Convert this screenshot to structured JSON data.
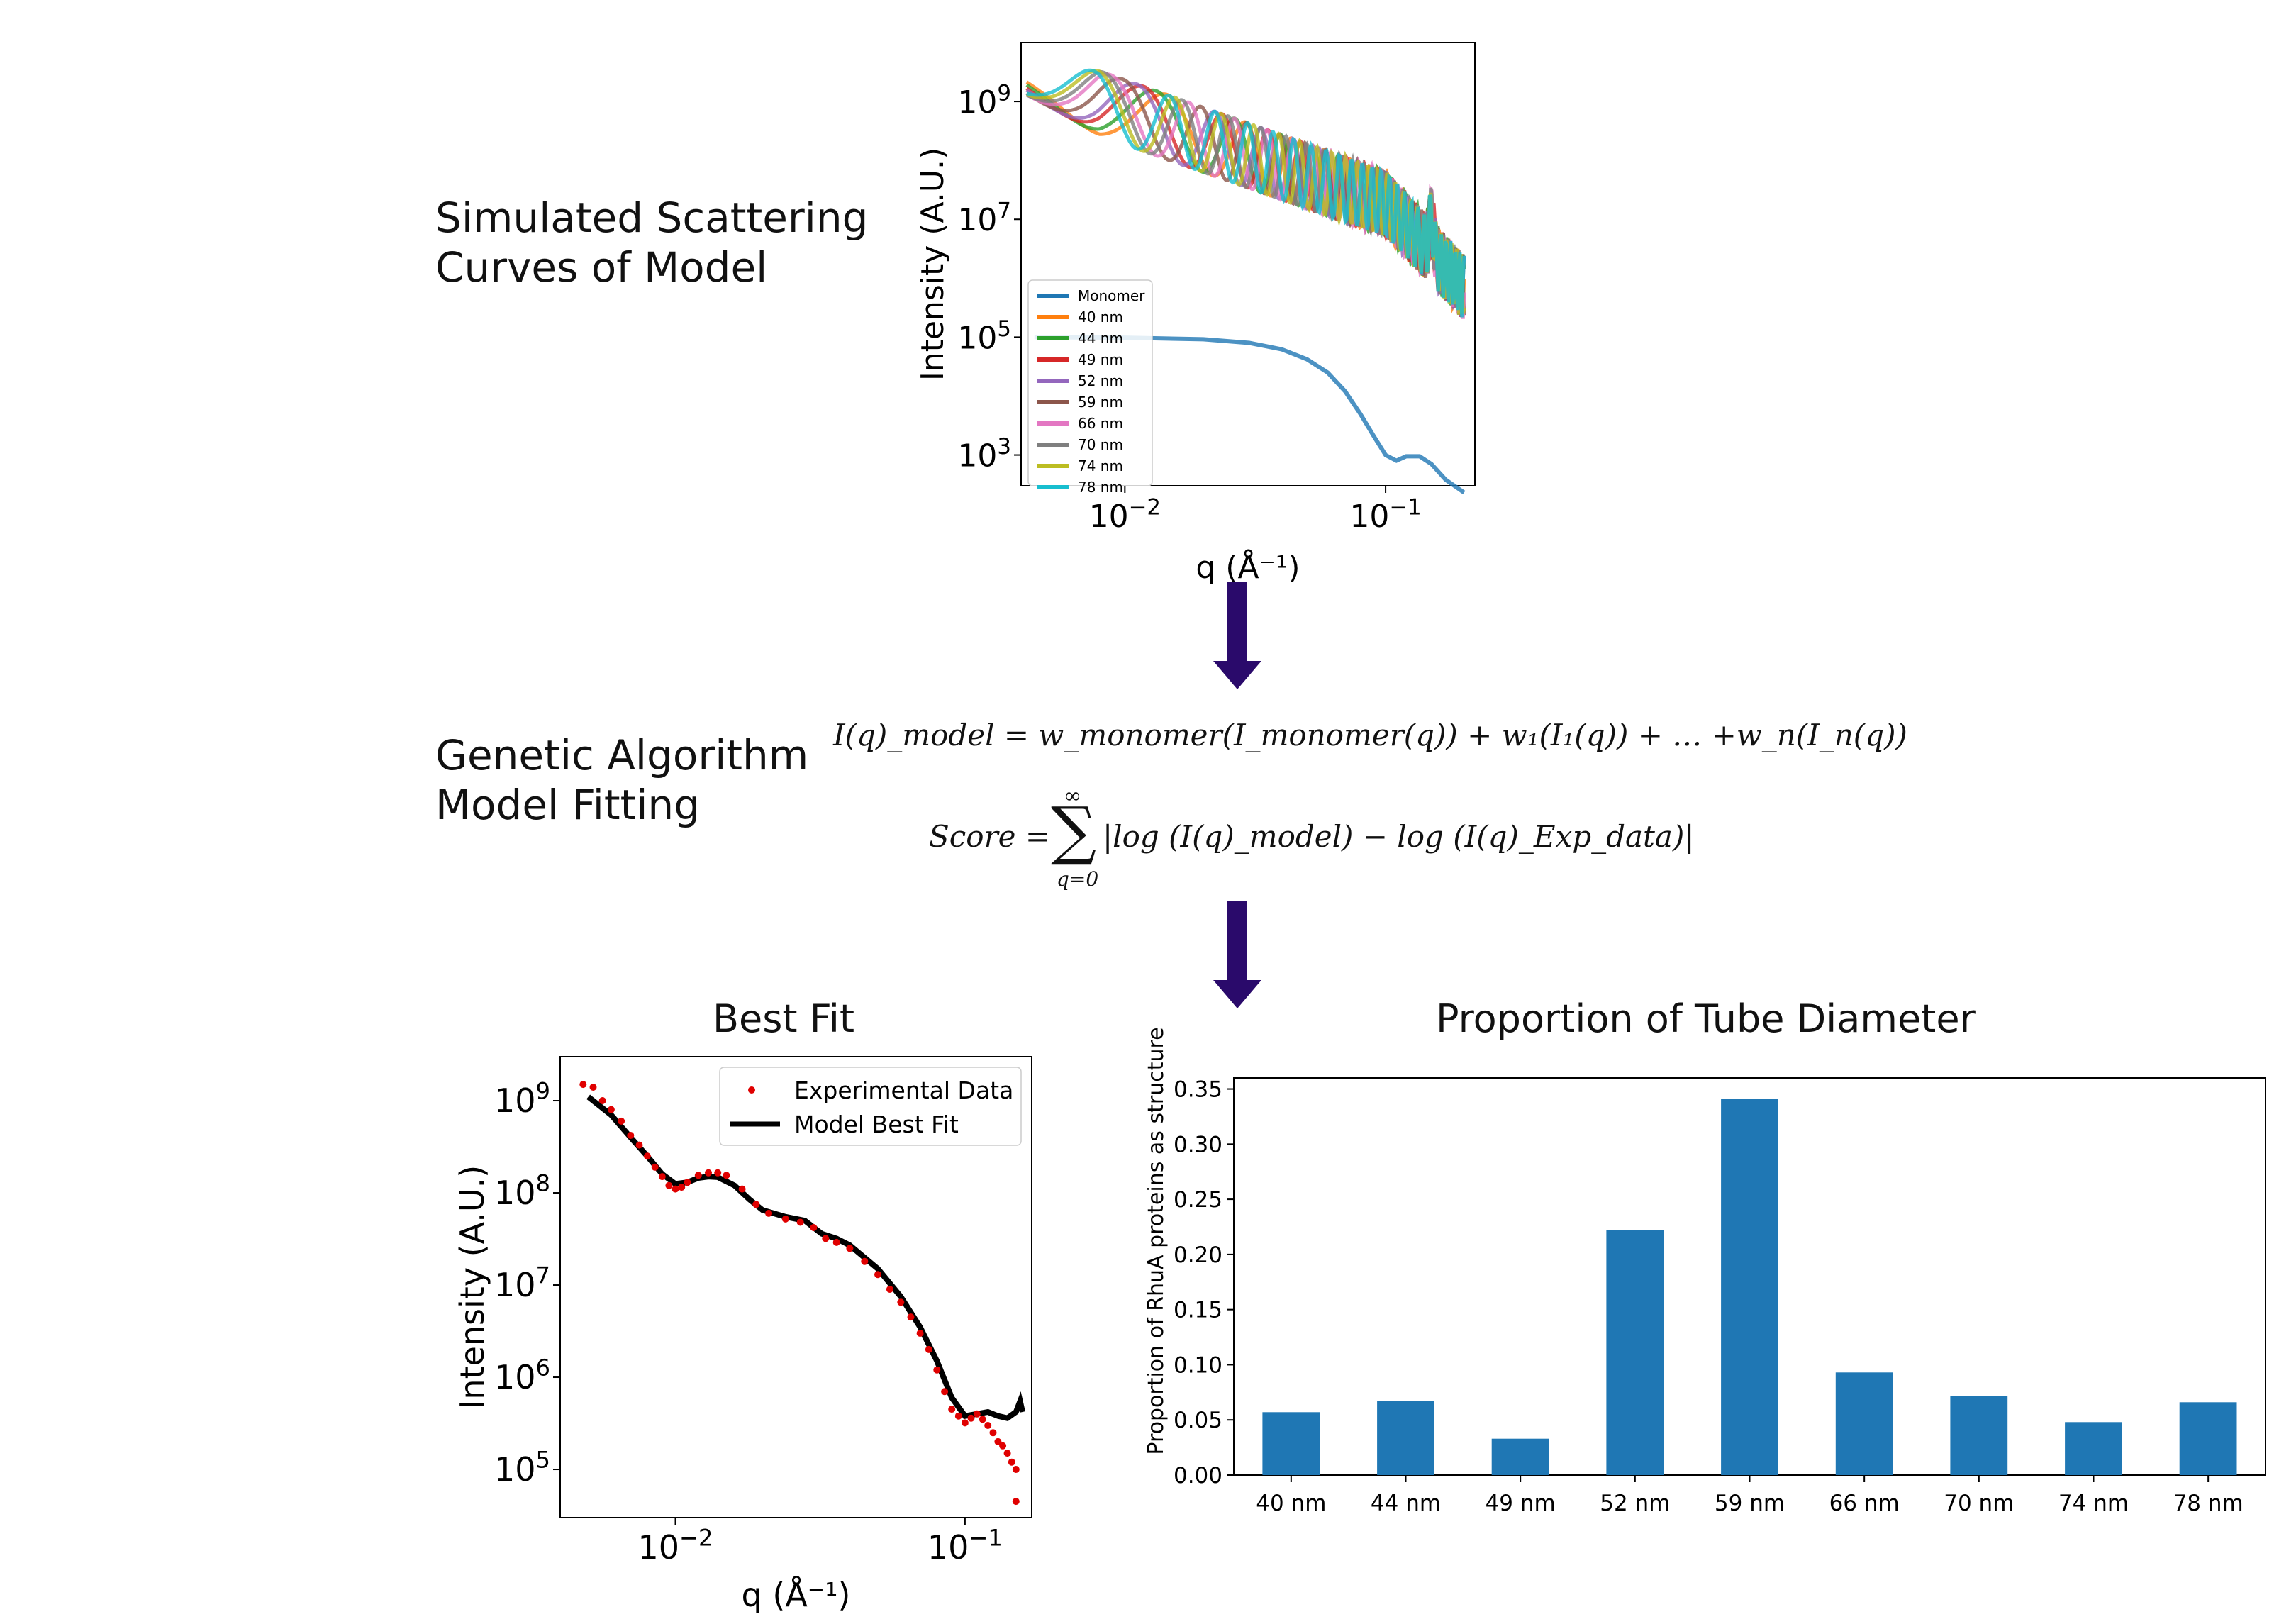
{
  "labels": {
    "simulated": [
      "Simulated Scattering",
      "Curves of Model"
    ],
    "genetic": [
      "Genetic Algorithm",
      "Model Fitting"
    ]
  },
  "formulas": {
    "model": "I(q)_model = w_monomer(I_monomer(q)) + w₁(I₁(q)) + … +w_n(I_n(q))",
    "score_lhs": "Score =",
    "score_sum_top": "∞",
    "score_sum_bottom": "q=0",
    "score_rhs": "|log (I(q)_model) − log (I(q)_Exp_data)|"
  },
  "colors": {
    "arrow": "#2a0a6b",
    "bar": "#1f77b4",
    "exp_points": "#e00000",
    "fit_line": "#000000"
  },
  "chart_data": [
    {
      "type": "line",
      "title": "",
      "xlabel": "q (Å⁻¹)",
      "ylabel": "Intensity (A.U.)",
      "xscale": "log",
      "yscale": "log",
      "xlim": [
        0.004,
        0.22
      ],
      "ylim": [
        300,
        10000000000
      ],
      "xticks": [
        {
          "v": 0.01,
          "label": "10",
          "exp": "−2"
        },
        {
          "v": 0.1,
          "label": "10",
          "exp": "−1"
        }
      ],
      "yticks": [
        {
          "v": 1000,
          "label": "10",
          "exp": "3"
        },
        {
          "v": 100000,
          "label": "10",
          "exp": "5"
        },
        {
          "v": 10000000,
          "label": "10",
          "exp": "7"
        },
        {
          "v": 1000000000,
          "label": "10",
          "exp": "9"
        }
      ],
      "legend_position": "lower-left",
      "series": [
        {
          "name": "Monomer",
          "color": "#1f77b4",
          "points": [
            [
              0.0045,
              100000
            ],
            [
              0.01,
              98000
            ],
            [
              0.02,
              92000
            ],
            [
              0.03,
              80000
            ],
            [
              0.04,
              62000
            ],
            [
              0.05,
              42000
            ],
            [
              0.06,
              25000
            ],
            [
              0.07,
              12000
            ],
            [
              0.08,
              5000
            ],
            [
              0.09,
              2100
            ],
            [
              0.1,
              1000
            ],
            [
              0.11,
              800
            ],
            [
              0.12,
              950
            ],
            [
              0.135,
              950
            ],
            [
              0.15,
              700
            ],
            [
              0.17,
              380
            ],
            [
              0.2,
              230
            ]
          ]
        },
        {
          "name": "40 nm",
          "color": "#ff7f0e",
          "period": 0.0145
        },
        {
          "name": "44 nm",
          "color": "#2ca02c",
          "period": 0.0132
        },
        {
          "name": "49 nm",
          "color": "#d62728",
          "period": 0.0118
        },
        {
          "name": "52 nm",
          "color": "#9467bd",
          "period": 0.0111
        },
        {
          "name": "59 nm",
          "color": "#8c564b",
          "period": 0.0098
        },
        {
          "name": "66 nm",
          "color": "#e377c2",
          "period": 0.0088
        },
        {
          "name": "70 nm",
          "color": "#7f7f7f",
          "period": 0.0083
        },
        {
          "name": "74 nm",
          "color": "#bcbd22",
          "period": 0.0078
        },
        {
          "name": "78 nm",
          "color": "#17becf",
          "period": 0.0074
        }
      ]
    },
    {
      "type": "scatter",
      "title": "Best Fit",
      "xlabel": "q (Å⁻¹)",
      "ylabel": "Intensity (A.U.)",
      "xscale": "log",
      "yscale": "log",
      "xlim": [
        0.004,
        0.17
      ],
      "ylim": [
        30000,
        3000000000
      ],
      "xticks": [
        {
          "v": 0.01,
          "label": "10",
          "exp": "−2"
        },
        {
          "v": 0.1,
          "label": "10",
          "exp": "−1"
        }
      ],
      "yticks": [
        {
          "v": 100000,
          "label": "10",
          "exp": "5"
        },
        {
          "v": 1000000,
          "label": "10",
          "exp": "6"
        },
        {
          "v": 10000000,
          "label": "10",
          "exp": "7"
        },
        {
          "v": 100000000,
          "label": "10",
          "exp": "8"
        },
        {
          "v": 1000000000,
          "label": "10",
          "exp": "9"
        }
      ],
      "legend_position": "top-right",
      "series": [
        {
          "name": "Experimental Data",
          "kind": "points",
          "color": "#e00000",
          "points": [
            [
              0.0048,
              1500000000
            ],
            [
              0.0052,
              1400000000
            ],
            [
              0.0056,
              1000000000
            ],
            [
              0.006,
              800000000
            ],
            [
              0.0065,
              600000000
            ],
            [
              0.007,
              420000000
            ],
            [
              0.0075,
              330000000
            ],
            [
              0.008,
              250000000
            ],
            [
              0.0085,
              190000000
            ],
            [
              0.009,
              150000000
            ],
            [
              0.0095,
              120000000
            ],
            [
              0.01,
              110000000
            ],
            [
              0.0105,
              115000000
            ],
            [
              0.011,
              130000000
            ],
            [
              0.012,
              155000000
            ],
            [
              0.013,
              165000000
            ],
            [
              0.014,
              165000000
            ],
            [
              0.015,
              155000000
            ],
            [
              0.017,
              110000000
            ],
            [
              0.019,
              75000000
            ],
            [
              0.021,
              60000000
            ],
            [
              0.024,
              52000000
            ],
            [
              0.027,
              48000000
            ],
            [
              0.03,
              42000000
            ],
            [
              0.033,
              32000000
            ],
            [
              0.036,
              29000000
            ],
            [
              0.04,
              25000000
            ],
            [
              0.045,
              18000000
            ],
            [
              0.05,
              13000000
            ],
            [
              0.055,
              9000000
            ],
            [
              0.06,
              6500000
            ],
            [
              0.065,
              4500000
            ],
            [
              0.07,
              3000000
            ],
            [
              0.075,
              2000000
            ],
            [
              0.08,
              1200000
            ],
            [
              0.085,
              700000
            ],
            [
              0.09,
              450000
            ],
            [
              0.095,
              380000
            ],
            [
              0.1,
              320000
            ],
            [
              0.105,
              360000
            ],
            [
              0.11,
              400000
            ],
            [
              0.115,
              350000
            ],
            [
              0.12,
              300000
            ],
            [
              0.125,
              250000
            ],
            [
              0.13,
              200000
            ],
            [
              0.135,
              180000
            ],
            [
              0.14,
              150000
            ],
            [
              0.145,
              120000
            ],
            [
              0.15,
              100000
            ],
            [
              0.15,
              45000
            ]
          ]
        },
        {
          "name": "Model Best Fit",
          "kind": "line",
          "color": "#000000",
          "points": [
            [
              0.005,
              1100000000
            ],
            [
              0.006,
              700000000
            ],
            [
              0.007,
              400000000
            ],
            [
              0.008,
              250000000
            ],
            [
              0.009,
              160000000
            ],
            [
              0.01,
              125000000
            ],
            [
              0.011,
              130000000
            ],
            [
              0.012,
              145000000
            ],
            [
              0.013,
              150000000
            ],
            [
              0.014,
              148000000
            ],
            [
              0.016,
              120000000
            ],
            [
              0.018,
              85000000
            ],
            [
              0.02,
              65000000
            ],
            [
              0.024,
              55000000
            ],
            [
              0.028,
              50000000
            ],
            [
              0.032,
              36000000
            ],
            [
              0.036,
              32000000
            ],
            [
              0.04,
              27000000
            ],
            [
              0.05,
              15000000
            ],
            [
              0.06,
              7500000
            ],
            [
              0.07,
              3500000
            ],
            [
              0.08,
              1500000
            ],
            [
              0.09,
              600000
            ],
            [
              0.1,
              380000
            ],
            [
              0.11,
              400000
            ],
            [
              0.12,
              420000
            ],
            [
              0.13,
              380000
            ],
            [
              0.14,
              360000
            ],
            [
              0.15,
              420000
            ],
            [
              0.155,
              550000
            ],
            [
              0.158,
              420000
            ]
          ]
        }
      ]
    },
    {
      "type": "bar",
      "title": "Proportion of Tube Diameter",
      "xlabel": "",
      "ylabel": "Proportion of RhuA proteins as structure",
      "categories": [
        "40 nm",
        "44 nm",
        "49 nm",
        "52 nm",
        "59 nm",
        "66 nm",
        "70 nm",
        "74 nm",
        "78 nm"
      ],
      "values": [
        0.057,
        0.067,
        0.033,
        0.222,
        0.341,
        0.093,
        0.072,
        0.048,
        0.066
      ],
      "ylim": [
        0,
        0.36
      ],
      "yticks": [
        "0.00",
        "0.05",
        "0.10",
        "0.15",
        "0.20",
        "0.25",
        "0.30",
        "0.35"
      ]
    }
  ]
}
